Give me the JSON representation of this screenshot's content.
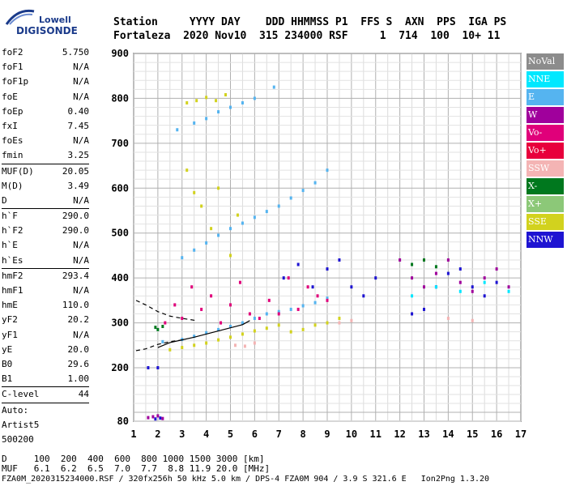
{
  "logo": {
    "line1": "Lowell",
    "line2": "DIGISONDE"
  },
  "header": {
    "row1": "Station     YYYY DAY    DDD HHMMSS P1  FFS S  AXN  PPS  IGA PS",
    "row2": "Fortaleza  2020 Nov10  315 234000 RSF     1  714  100  10+ 11"
  },
  "params": [
    {
      "label": "foF2",
      "value": "5.750"
    },
    {
      "label": "foF1",
      "value": "N/A"
    },
    {
      "label": "foF1p",
      "value": "N/A"
    },
    {
      "label": "foE",
      "value": "N/A"
    },
    {
      "label": "foEp",
      "value": "0.40"
    },
    {
      "label": "fxI",
      "value": "7.45"
    },
    {
      "label": "foEs",
      "value": "N/A"
    },
    {
      "label": "fmin",
      "value": "3.25"
    },
    {
      "sep": true
    },
    {
      "label": "MUF(D)",
      "value": "20.05"
    },
    {
      "label": "M(D)",
      "value": "3.49"
    },
    {
      "label": "D",
      "value": "N/A"
    },
    {
      "sep": true
    },
    {
      "label": "h`F",
      "value": "290.0"
    },
    {
      "label": "h`F2",
      "value": "290.0"
    },
    {
      "label": "h`E",
      "value": "N/A"
    },
    {
      "label": "h`Es",
      "value": "N/A"
    },
    {
      "sep": true
    },
    {
      "label": "hmF2",
      "value": "293.4"
    },
    {
      "label": "hmF1",
      "value": "N/A"
    },
    {
      "label": "hmE",
      "value": "110.0"
    },
    {
      "label": "yF2",
      "value": "20.2"
    },
    {
      "label": "yF1",
      "value": "N/A"
    },
    {
      "label": "yE",
      "value": "20.0"
    },
    {
      "label": "B0",
      "value": "29.6"
    },
    {
      "label": "B1",
      "value": "1.00"
    },
    {
      "sep": true
    },
    {
      "label": "C-level",
      "value": "44"
    },
    {
      "sep": true
    },
    {
      "label": "Auto:",
      "value": ""
    },
    {
      "label": "Artist5",
      "value": ""
    },
    {
      "label": "500200",
      "value": ""
    }
  ],
  "legend": [
    {
      "label": "NoVal",
      "color": "#8c8c8c"
    },
    {
      "label": "NNE",
      "color": "#00e8ff"
    },
    {
      "label": "E",
      "color": "#55b4f0"
    },
    {
      "label": "W",
      "color": "#a0009c"
    },
    {
      "label": "Vo-",
      "color": "#e0007a"
    },
    {
      "label": "Vo+",
      "color": "#e8003c"
    },
    {
      "label": "SSW",
      "color": "#f4b4b4"
    },
    {
      "label": "X-",
      "color": "#00781e"
    },
    {
      "label": "X+",
      "color": "#8cc878"
    },
    {
      "label": "SSE",
      "color": "#d2d21e"
    },
    {
      "label": "NNW",
      "color": "#1e14d2"
    }
  ],
  "chart_data": {
    "type": "scatter",
    "xlim": [
      1,
      17
    ],
    "ylim": [
      80,
      900
    ],
    "xticks": [
      "1",
      "2",
      "3",
      "4",
      "5",
      "6",
      "7",
      "8",
      "9",
      "10",
      "11",
      "12",
      "13",
      "14",
      "15",
      "16",
      "17"
    ],
    "yticks": [
      "80",
      "200",
      "300",
      "400",
      "500",
      "600",
      "700",
      "800",
      "900"
    ],
    "grid": true,
    "series": [
      {
        "color": "E",
        "x": [
          2.2,
          3.0,
          3.5,
          4.0,
          4.5,
          5.0,
          5.5,
          6.0,
          6.5,
          7.0,
          7.5,
          8.0,
          8.5,
          9.0
        ],
        "y": [
          258,
          263,
          270,
          278,
          285,
          292,
          300,
          310,
          320,
          325,
          330,
          338,
          345,
          355
        ]
      },
      {
        "color": "E",
        "x": [
          3.0,
          3.5,
          4.0,
          4.5,
          5.0,
          5.5,
          6.0,
          6.5,
          7.0,
          7.5,
          8.0,
          8.5,
          9.0
        ],
        "y": [
          445,
          462,
          478,
          495,
          510,
          522,
          535,
          548,
          560,
          578,
          595,
          612,
          640
        ]
      },
      {
        "color": "E",
        "x": [
          2.8,
          3.5,
          4.0,
          4.5,
          5.0,
          5.5,
          6.0,
          6.8
        ],
        "y": [
          730,
          745,
          755,
          770,
          780,
          790,
          800,
          825
        ]
      },
      {
        "color": "Vo-",
        "x": [
          2.3,
          2.7,
          3.0,
          3.4,
          3.8,
          4.2,
          4.6,
          5.0,
          5.4,
          5.8,
          6.2,
          6.6,
          7.0,
          7.4,
          7.8,
          8.2,
          8.6,
          9.0
        ],
        "y": [
          300,
          340,
          310,
          380,
          330,
          360,
          300,
          340,
          390,
          320,
          310,
          350,
          320,
          400,
          330,
          380,
          360,
          350
        ]
      },
      {
        "color": "SSE",
        "x": [
          2.5,
          3.0,
          3.5,
          4.0,
          4.5,
          5.0,
          5.5,
          6.0,
          6.5,
          7.0,
          7.5,
          8.0,
          8.5,
          9.0,
          9.5
        ],
        "y": [
          240,
          245,
          250,
          255,
          262,
          268,
          275,
          282,
          288,
          295,
          280,
          285,
          295,
          300,
          310
        ]
      },
      {
        "color": "SSE",
        "x": [
          3.2,
          3.6,
          4.0,
          4.4,
          4.8
        ],
        "y": [
          790,
          795,
          802,
          795,
          808
        ]
      },
      {
        "color": "SSE",
        "x": [
          3.2,
          3.5,
          3.8,
          4.2,
          4.5,
          5.0,
          5.3
        ],
        "y": [
          640,
          590,
          560,
          510,
          600,
          450,
          540
        ]
      },
      {
        "color": "NNW",
        "x": [
          7.2,
          7.8,
          8.4,
          9.0,
          9.5,
          10.0,
          10.5,
          11.0,
          12.5,
          13.0,
          13.5,
          14.0,
          14.5,
          15.0,
          15.5,
          16.0
        ],
        "y": [
          400,
          430,
          380,
          420,
          440,
          380,
          360,
          400,
          320,
          330,
          380,
          410,
          420,
          380,
          360,
          390
        ]
      },
      {
        "color": "W",
        "x": [
          12.0,
          12.5,
          13.0,
          13.5,
          14.0,
          14.5,
          15.0,
          15.5,
          16.0,
          16.5
        ],
        "y": [
          440,
          400,
          380,
          410,
          440,
          390,
          370,
          400,
          420,
          380
        ]
      },
      {
        "color": "NNE",
        "x": [
          12.5,
          13.5,
          14.5,
          15.5,
          16.5
        ],
        "y": [
          360,
          380,
          370,
          390,
          370
        ]
      },
      {
        "color": "X-",
        "x": [
          1.9,
          2.0,
          2.2,
          12.5,
          13.0,
          13.5
        ],
        "y": [
          290,
          285,
          292,
          430,
          440,
          425
        ]
      },
      {
        "color": "SSW",
        "x": [
          5.2,
          5.6,
          6.0,
          9.5,
          10.0,
          14.0,
          15.0
        ],
        "y": [
          250,
          248,
          255,
          300,
          305,
          310,
          305
        ]
      },
      {
        "color": "NNW",
        "x": [
          1.6,
          2.0,
          2.1,
          1.9
        ],
        "y": [
          200,
          200,
          87,
          85
        ]
      },
      {
        "color": "W",
        "x": [
          1.6,
          1.8,
          2.0,
          2.2
        ],
        "y": [
          88,
          90,
          92,
          86
        ]
      }
    ],
    "profile": {
      "x": [
        2.0,
        2.5,
        3.0,
        3.5,
        4.0,
        4.5,
        5.0,
        5.5,
        5.8
      ],
      "y": [
        245,
        256,
        262,
        268,
        275,
        282,
        289,
        296,
        305
      ]
    },
    "profile_upper": {
      "x": [
        1.1,
        1.5,
        2.0,
        2.5,
        3.0,
        3.6
      ],
      "y": [
        350,
        340,
        325,
        315,
        310,
        305
      ]
    },
    "profile_lower": {
      "x": [
        1.1,
        1.5,
        2.0,
        2.5,
        3.0
      ],
      "y": [
        238,
        242,
        252,
        258,
        262
      ]
    }
  },
  "footer": {
    "line1": "D     100  200  400  600  800 1000 1500 3000 [km]",
    "line2": "MUF   6.1  6.2  6.5  7.0  7.7  8.8 11.9 20.0 [MHz]",
    "line3": "FZA0M_2020315234000.RSF / 320fx256h 50 kHz 5.0 km / DPS-4 FZA0M 904 / 3.9 S 321.6 E   Ion2Png 1.3.20"
  }
}
